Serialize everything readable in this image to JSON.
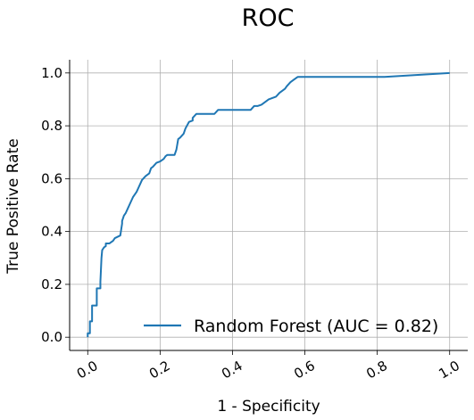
{
  "chart_data": {
    "type": "line",
    "title": "ROC",
    "xlabel": "1 - Specificity",
    "ylabel": "True Positive Rate",
    "xlim": [
      -0.05,
      1.05
    ],
    "ylim": [
      -0.05,
      1.05
    ],
    "x_ticks": [
      "0.0",
      "0.2",
      "0.4",
      "0.6",
      "0.8",
      "1.0"
    ],
    "y_ticks": [
      "0.0",
      "0.2",
      "0.4",
      "0.6",
      "0.8",
      "1.0"
    ],
    "grid": true,
    "legend_position": "lower-right",
    "series": [
      {
        "name": "Random Forest (AUC = 0.82)",
        "color": "#1f77b4",
        "x": [
          0.0,
          0.0,
          0.006,
          0.006,
          0.012,
          0.012,
          0.025,
          0.025,
          0.035,
          0.035,
          0.038,
          0.04,
          0.045,
          0.05,
          0.05,
          0.06,
          0.07,
          0.075,
          0.09,
          0.095,
          0.095,
          0.1,
          0.105,
          0.11,
          0.115,
          0.125,
          0.135,
          0.14,
          0.145,
          0.15,
          0.16,
          0.17,
          0.175,
          0.18,
          0.19,
          0.2,
          0.21,
          0.215,
          0.22,
          0.24,
          0.245,
          0.25,
          0.255,
          0.265,
          0.27,
          0.28,
          0.29,
          0.29,
          0.3,
          0.35,
          0.36,
          0.45,
          0.46,
          0.47,
          0.48,
          0.49,
          0.5,
          0.51,
          0.52,
          0.53,
          0.545,
          0.55,
          0.56,
          0.57,
          0.58,
          0.82,
          1.0
        ],
        "y": [
          0.0,
          0.015,
          0.015,
          0.06,
          0.06,
          0.12,
          0.12,
          0.185,
          0.185,
          0.21,
          0.3,
          0.33,
          0.34,
          0.345,
          0.355,
          0.355,
          0.365,
          0.375,
          0.385,
          0.43,
          0.44,
          0.46,
          0.47,
          0.485,
          0.5,
          0.53,
          0.55,
          0.565,
          0.58,
          0.595,
          0.61,
          0.62,
          0.64,
          0.645,
          0.66,
          0.665,
          0.675,
          0.685,
          0.69,
          0.69,
          0.71,
          0.75,
          0.755,
          0.77,
          0.79,
          0.815,
          0.82,
          0.83,
          0.845,
          0.845,
          0.86,
          0.86,
          0.875,
          0.875,
          0.88,
          0.89,
          0.9,
          0.905,
          0.91,
          0.925,
          0.94,
          0.95,
          0.965,
          0.975,
          0.985,
          0.985,
          1.0
        ]
      }
    ]
  }
}
